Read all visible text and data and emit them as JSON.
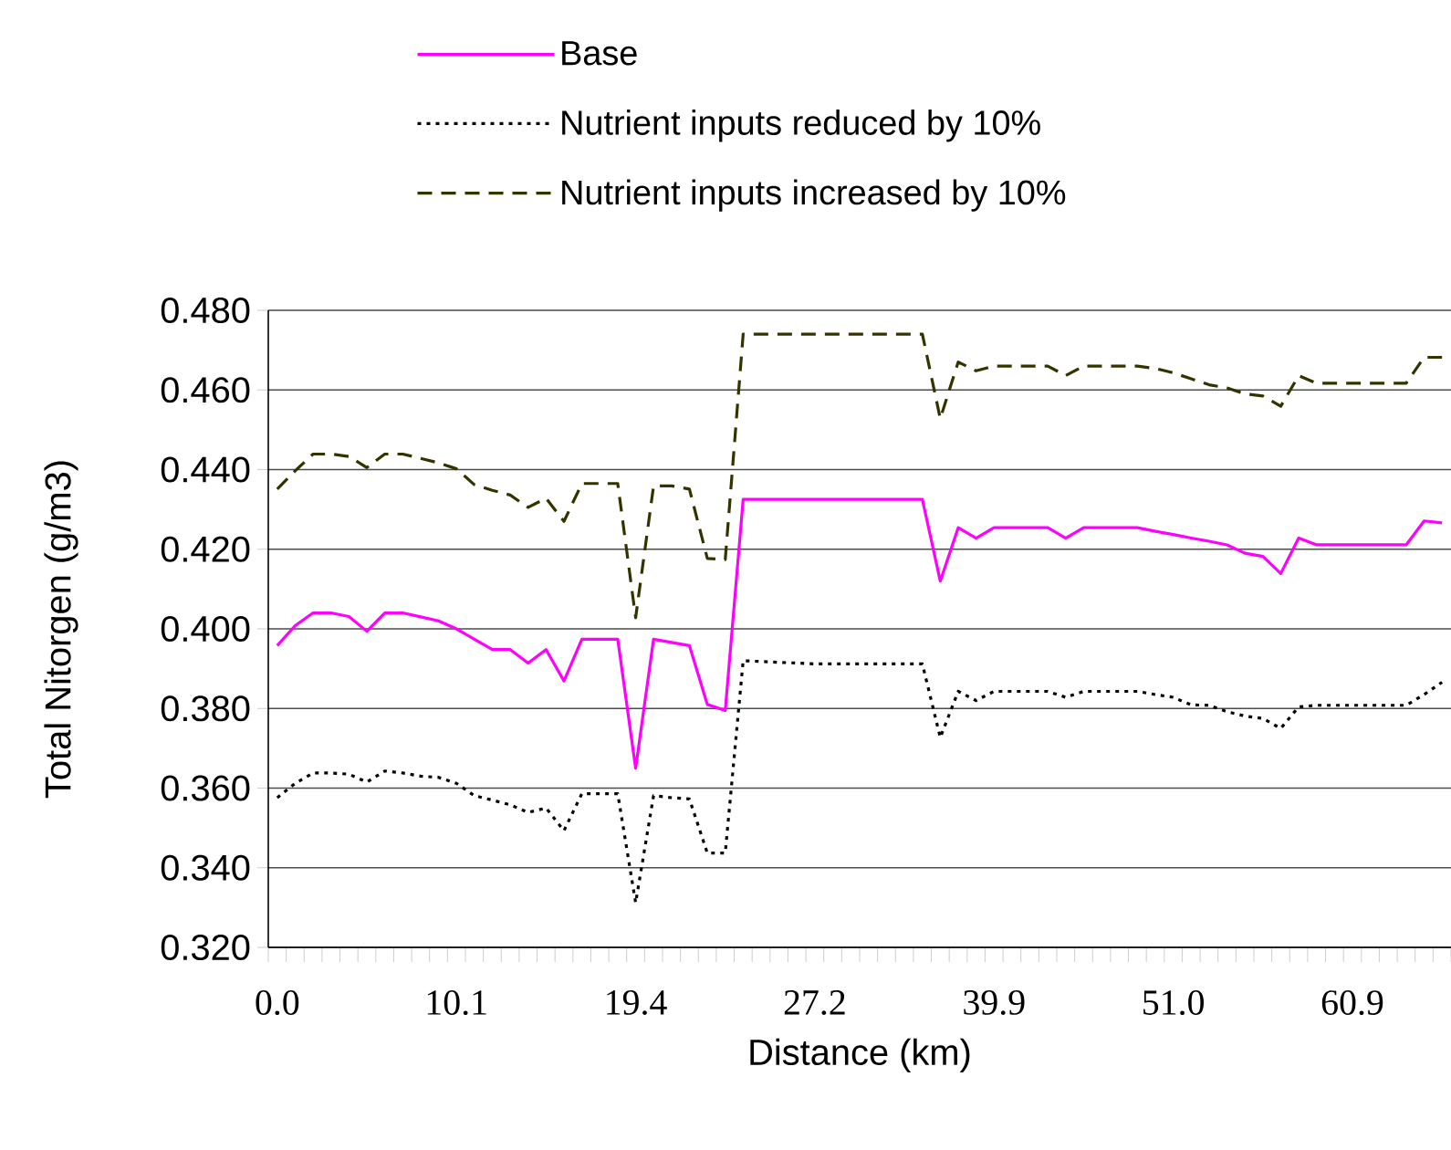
{
  "chart_data": {
    "type": "line",
    "xlabel": "Distance (km)",
    "ylabel": "Total Nitorgen (g/m3)",
    "categories": [
      "0.0",
      null,
      null,
      null,
      null,
      null,
      null,
      null,
      null,
      null,
      "10.1",
      null,
      null,
      null,
      null,
      null,
      null,
      null,
      null,
      null,
      "19.4",
      null,
      null,
      null,
      null,
      null,
      null,
      null,
      null,
      null,
      "27.2",
      null,
      null,
      null,
      null,
      null,
      null,
      null,
      null,
      null,
      "39.9",
      null,
      null,
      null,
      null,
      null,
      null,
      null,
      null,
      null,
      "51.0",
      null,
      null,
      null,
      null,
      null,
      null,
      null,
      null,
      null,
      "60.9",
      null,
      null,
      null,
      null,
      null
    ],
    "series": [
      {
        "name": "Base",
        "color": "#ff00ff",
        "line_style": "solid",
        "values": [
          0.3958,
          0.4008,
          0.404,
          0.404,
          0.4031,
          0.3994,
          0.404,
          0.404,
          0.403,
          0.402,
          0.4,
          0.3974,
          0.3948,
          0.3948,
          0.3914,
          0.3948,
          0.3869,
          0.3974,
          0.3974,
          0.3974,
          0.365,
          0.3974,
          0.3966,
          0.3958,
          0.381,
          0.3795,
          0.4325,
          0.4325,
          0.4325,
          0.4325,
          0.4325,
          0.4325,
          0.4325,
          0.4325,
          0.4325,
          0.4325,
          0.4325,
          0.412,
          0.4254,
          0.4228,
          0.4254,
          0.4254,
          0.4254,
          0.4254,
          0.4228,
          0.4254,
          0.4254,
          0.4254,
          0.4254,
          0.4245,
          0.4237,
          0.4228,
          0.422,
          0.4211,
          0.419,
          0.4182,
          0.4139,
          0.4228,
          0.4211,
          0.4211,
          0.4211,
          0.4211,
          0.4211,
          0.4211,
          0.4271,
          0.4266
        ]
      },
      {
        "name": "Nutrient inputs reduced by 10%",
        "color": "#000000",
        "line_style": "dotted",
        "values": [
          0.3576,
          0.3612,
          0.3638,
          0.3638,
          0.3635,
          0.3615,
          0.3643,
          0.3638,
          0.363,
          0.3627,
          0.3612,
          0.3581,
          0.357,
          0.3558,
          0.3539,
          0.355,
          0.3493,
          0.3586,
          0.3586,
          0.3586,
          0.3312,
          0.3581,
          0.3576,
          0.3573,
          0.3437,
          0.3437,
          0.392,
          0.3918,
          0.3916,
          0.3914,
          0.3912,
          0.3912,
          0.3912,
          0.3912,
          0.3912,
          0.3912,
          0.3912,
          0.3727,
          0.3843,
          0.382,
          0.3843,
          0.3843,
          0.3843,
          0.3843,
          0.3828,
          0.3843,
          0.3843,
          0.3843,
          0.3843,
          0.3835,
          0.3828,
          0.3809,
          0.3808,
          0.3792,
          0.3781,
          0.3775,
          0.375,
          0.3804,
          0.3808,
          0.3808,
          0.3808,
          0.3808,
          0.3808,
          0.3808,
          0.3835,
          0.3866
        ]
      },
      {
        "name": "Nutrient inputs increased by 10%",
        "color": "#333300",
        "line_style": "dashed",
        "values": [
          0.4351,
          0.4397,
          0.4439,
          0.4439,
          0.4433,
          0.4405,
          0.4439,
          0.4439,
          0.4428,
          0.4417,
          0.4402,
          0.4362,
          0.4348,
          0.4336,
          0.4305,
          0.4328,
          0.427,
          0.4365,
          0.4365,
          0.4365,
          0.4028,
          0.4359,
          0.4359,
          0.4351,
          0.4177,
          0.4174,
          0.474,
          0.474,
          0.474,
          0.474,
          0.474,
          0.474,
          0.474,
          0.474,
          0.474,
          0.474,
          0.474,
          0.4528,
          0.467,
          0.4648,
          0.466,
          0.466,
          0.466,
          0.466,
          0.4636,
          0.466,
          0.466,
          0.466,
          0.466,
          0.4654,
          0.4643,
          0.4628,
          0.4613,
          0.4605,
          0.459,
          0.4585,
          0.4559,
          0.4636,
          0.4617,
          0.4617,
          0.4617,
          0.4617,
          0.4617,
          0.4617,
          0.4682,
          0.4682
        ]
      }
    ],
    "ylim": [
      0.32,
      0.48
    ],
    "yticks": [
      {
        "value": 0.32,
        "label": "0.320"
      },
      {
        "value": 0.34,
        "label": "0.340"
      },
      {
        "value": 0.36,
        "label": "0.360"
      },
      {
        "value": 0.38,
        "label": "0.380"
      },
      {
        "value": 0.4,
        "label": "0.400"
      },
      {
        "value": 0.42,
        "label": "0.420"
      },
      {
        "value": 0.44,
        "label": "0.440"
      },
      {
        "value": 0.46,
        "label": "0.460"
      },
      {
        "value": 0.48,
        "label": "0.480"
      }
    ],
    "grid": "y",
    "legend": "top",
    "marker": "none"
  }
}
